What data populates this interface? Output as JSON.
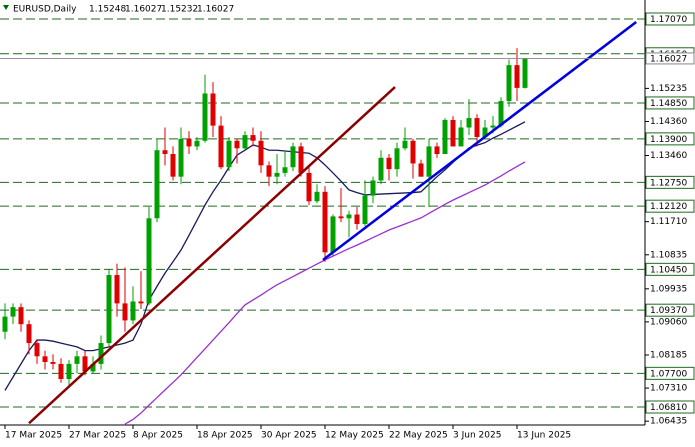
{
  "chart_data": {
    "type": "candlestick",
    "title": "EURUSD,Daily",
    "categories": [
      "17 Mar 2025",
      null,
      null,
      null,
      null,
      null,
      null,
      null,
      "27 Mar 2025",
      null,
      null,
      null,
      null,
      null,
      null,
      null,
      "8 Apr 2025",
      null,
      null,
      null,
      null,
      null,
      null,
      null,
      "18 Apr 2025",
      null,
      null,
      null,
      null,
      null,
      null,
      null,
      "30 Apr 2025",
      null,
      null,
      null,
      null,
      null,
      null,
      null,
      "12 May 2025",
      null,
      null,
      null,
      null,
      null,
      null,
      null,
      "22 May 2025",
      null,
      null,
      null,
      null,
      null,
      null,
      null,
      "3 Jun 2025",
      null,
      null,
      null,
      null,
      null,
      null,
      null,
      "13 Jun 2025",
      null
    ],
    "open": [
      1.088,
      1.092,
      1.0945,
      1.09,
      1.085,
      1.0815,
      1.08,
      1.0795,
      1.0755,
      1.0795,
      1.0815,
      1.0775,
      1.0795,
      1.085,
      1.103,
      1.0955,
      1.091,
      1.096,
      1.0955,
      1.118,
      1.136,
      1.135,
      1.129,
      1.139,
      1.137,
      1.1385,
      1.151,
      1.1425,
      1.1315,
      1.1385,
      1.1365,
      1.14,
      1.1385,
      1.132,
      1.129,
      1.13,
      1.1315,
      1.137,
      1.13,
      1.1225,
      1.125,
      1.109,
      1.1185,
      1.118,
      1.119,
      1.1165,
      1.124,
      1.128,
      1.134,
      1.131,
      1.1365,
      1.1385,
      1.1325,
      1.129,
      1.137,
      1.135,
      1.144,
      1.137,
      1.142,
      1.1445,
      1.1395,
      1.142,
      1.1425,
      1.149,
      1.1585,
      1.15248
    ],
    "high": [
      1.0955,
      1.0955,
      1.0955,
      1.091,
      1.086,
      1.083,
      1.082,
      1.081,
      1.0805,
      1.083,
      1.083,
      1.0815,
      1.087,
      1.1045,
      1.106,
      1.105,
      1.1,
      1.104,
      1.121,
      1.139,
      1.142,
      1.137,
      1.142,
      1.141,
      1.1395,
      1.156,
      1.154,
      1.145,
      1.1395,
      1.139,
      1.141,
      1.142,
      1.141,
      1.133,
      1.135,
      1.136,
      1.138,
      1.138,
      1.132,
      1.127,
      1.1265,
      1.119,
      1.126,
      1.12,
      1.121,
      1.128,
      1.129,
      1.136,
      1.135,
      1.138,
      1.142,
      1.139,
      1.1335,
      1.139,
      1.138,
      1.1445,
      1.145,
      1.144,
      1.1495,
      1.1455,
      1.144,
      1.145,
      1.15,
      1.16,
      1.163,
      1.16027
    ],
    "low": [
      1.086,
      1.09,
      1.088,
      1.082,
      1.0795,
      1.078,
      1.078,
      1.0745,
      1.0735,
      1.077,
      1.0765,
      1.077,
      1.078,
      1.084,
      1.092,
      1.088,
      1.09,
      1.094,
      1.095,
      1.117,
      1.132,
      1.128,
      1.127,
      1.135,
      1.136,
      1.138,
      1.1395,
      1.131,
      1.1305,
      1.1325,
      1.136,
      1.137,
      1.13,
      1.1265,
      1.127,
      1.129,
      1.1305,
      1.129,
      1.1215,
      1.122,
      1.1065,
      1.108,
      1.117,
      1.113,
      1.115,
      1.116,
      1.122,
      1.127,
      1.128,
      1.129,
      1.136,
      1.1285,
      1.129,
      1.121,
      1.134,
      1.135,
      1.137,
      1.137,
      1.14,
      1.137,
      1.139,
      1.1405,
      1.142,
      1.1475,
      1.149,
      1.15232
    ],
    "close": [
      1.092,
      1.0945,
      1.09,
      1.085,
      1.0815,
      1.08,
      1.0795,
      1.0755,
      1.0795,
      1.0815,
      1.0775,
      1.0795,
      1.085,
      1.103,
      1.0955,
      1.091,
      1.096,
      1.0955,
      1.118,
      1.136,
      1.135,
      1.129,
      1.139,
      1.137,
      1.1385,
      1.151,
      1.1425,
      1.1315,
      1.1385,
      1.1365,
      1.14,
      1.1385,
      1.132,
      1.129,
      1.13,
      1.1315,
      1.137,
      1.13,
      1.1225,
      1.125,
      1.109,
      1.1185,
      1.118,
      1.119,
      1.1165,
      1.124,
      1.128,
      1.134,
      1.131,
      1.1365,
      1.1385,
      1.1325,
      1.129,
      1.137,
      1.135,
      1.144,
      1.137,
      1.142,
      1.1445,
      1.1395,
      1.142,
      1.1425,
      1.149,
      1.1585,
      1.15248,
      1.16027
    ],
    "up_color": "#00a000",
    "down_color": "#e00000",
    "lines": [
      {
        "color": "#1a1a5e",
        "values": [
          1.0725,
          1.076,
          1.0795,
          1.083,
          1.0858,
          1.0858,
          1.0855,
          1.085,
          1.0845,
          1.084,
          1.083,
          1.083,
          1.0835,
          1.084,
          1.0845,
          1.085,
          1.0858,
          1.09,
          1.0964,
          1.1,
          1.1035,
          1.1065,
          1.1096,
          1.1135,
          1.1175,
          1.1215,
          1.125,
          1.1281,
          1.1315,
          1.1347,
          1.136,
          1.1374,
          1.1368,
          1.136,
          1.136,
          1.1358,
          1.1356,
          1.1354,
          1.1352,
          1.134,
          1.1321,
          1.13,
          1.1278,
          1.1255,
          1.1248,
          1.1242,
          1.1243,
          1.1244,
          1.1245,
          1.1246,
          1.1247,
          1.1248,
          1.125,
          1.127,
          1.129,
          1.1308,
          1.1328,
          1.1347,
          1.1366,
          1.1373,
          1.138,
          1.1392,
          1.1402,
          1.1413,
          1.1424,
          1.1435
        ]
      },
      {
        "color": "#9b30d0",
        "values": [
          null,
          null,
          null,
          null,
          null,
          null,
          null,
          null,
          null,
          null,
          null,
          null,
          null,
          null,
          null,
          1.0636,
          1.0648,
          1.0665,
          1.0686,
          1.0706,
          1.0726,
          1.0746,
          1.0766,
          1.0789,
          1.0812,
          1.0835,
          1.0858,
          1.0881,
          1.0904,
          1.0928,
          1.0951,
          1.0964,
          1.0977,
          1.0991,
          1.1004,
          1.1015,
          1.1026,
          1.1037,
          1.1048,
          1.1059,
          1.107,
          1.108,
          1.109,
          1.11,
          1.1109,
          1.1119,
          1.1129,
          1.1139,
          1.1149,
          1.1157,
          1.1165,
          1.1173,
          1.1181,
          1.1193,
          1.1205,
          1.1217,
          1.1228,
          1.1238,
          1.1248,
          1.1258,
          1.1268,
          1.128,
          1.1292,
          1.1305,
          1.1317,
          1.1329
        ]
      }
    ],
    "trendlines": [
      {
        "color": "#8b0000",
        "x": [
          3,
          48.75
        ],
        "values": [
          1.0638,
          1.1527
        ]
      },
      {
        "color": "#0000e0",
        "x": [
          39.75,
          78.9
        ],
        "values": [
          1.107,
          1.1699
        ]
      }
    ],
    "levels": [
      {
        "value": 1.1707,
        "label": "1.17070"
      },
      {
        "value": 1.1615,
        "label": "1.16150"
      },
      {
        "value": 1.1485,
        "label": "1.14850"
      },
      {
        "value": 1.139,
        "label": "1.13900"
      },
      {
        "value": 1.1275,
        "label": "1.12750"
      },
      {
        "value": 1.1212,
        "label": "1.12120"
      },
      {
        "value": 1.1045,
        "label": "1.10450"
      },
      {
        "value": 1.0937,
        "label": "1.09370"
      },
      {
        "value": 1.077,
        "label": "1.07700"
      },
      {
        "value": 1.0681,
        "label": "1.06810"
      }
    ],
    "level_color": "#1e6b1e",
    "xlim": [
      -0.625,
      80
    ],
    "ylim": [
      1.06334,
      1.17572
    ],
    "yticks": [
      {
        "value": 1.15235,
        "label": "1.15235"
      },
      {
        "value": 1.1436,
        "label": "1.14360"
      },
      {
        "value": 1.1346,
        "label": "1.13460"
      },
      {
        "value": 1.1171,
        "label": "1.11710"
      },
      {
        "value": 1.10835,
        "label": "1.10835"
      },
      {
        "value": 1.09935,
        "label": "1.09935"
      },
      {
        "value": 1.0906,
        "label": "1.09060"
      },
      {
        "value": 1.08185,
        "label": "1.08185"
      },
      {
        "value": 1.0731,
        "label": "1.07310"
      },
      {
        "value": 1.06435,
        "label": "1.06435"
      }
    ]
  }
}
